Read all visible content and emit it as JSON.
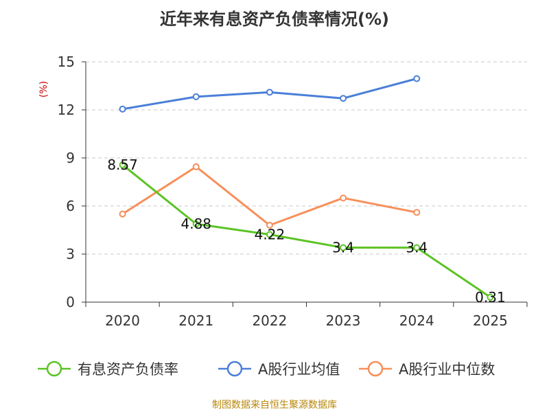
{
  "title": "近年来有息资产负债率情况(%)",
  "source": "制图数据来自恒生聚源数据库",
  "chart_data": {
    "type": "line",
    "title": "近年来有息资产负债率情况(%)",
    "ylabel": "(%)",
    "ylim": [
      0,
      15
    ],
    "yticks": [
      "0",
      "3",
      "6",
      "9",
      "12",
      "15"
    ],
    "categories": [
      "2020",
      "2021",
      "2022",
      "2023",
      "2024",
      "2025"
    ],
    "grid": "horizontal-dashed",
    "legend_position": "bottom",
    "series": [
      {
        "name": "有息资产负债率",
        "color": "#5bc324",
        "values": [
          8.57,
          4.88,
          4.22,
          3.4,
          3.4,
          0.31
        ],
        "labels": [
          "8.57",
          "4.88",
          "4.22",
          "3.4",
          "3.4",
          "0.31"
        ]
      },
      {
        "name": "A股行业均值",
        "color": "#4a7fd8",
        "values": [
          12.05,
          12.82,
          13.1,
          12.72,
          13.95,
          null
        ]
      },
      {
        "name": "A股行业中位数",
        "color": "#f78f5a",
        "values": [
          5.5,
          8.45,
          4.8,
          6.5,
          5.6,
          null
        ]
      }
    ]
  }
}
